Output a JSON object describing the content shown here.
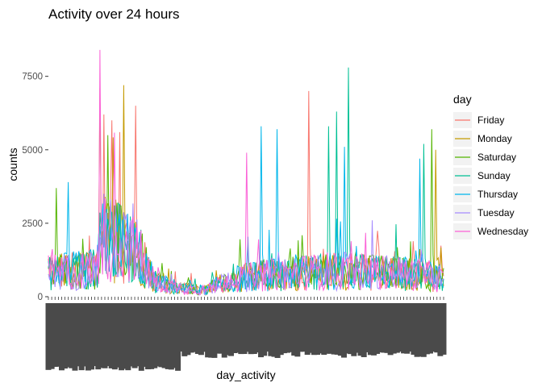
{
  "chart_data": {
    "type": "line",
    "title": "Activity over 24 hours",
    "xlabel": "day_activity",
    "ylabel": "counts",
    "ylim": [
      0,
      9000
    ],
    "yticks": [
      {
        "value": 0,
        "label": "0"
      },
      {
        "value": 2500,
        "label": "2500"
      },
      {
        "value": 5000,
        "label": "5000"
      },
      {
        "value": 7500,
        "label": "7500"
      }
    ],
    "x_tick_labels_overplotted": true,
    "grid": false,
    "legend": {
      "title": "day",
      "position": "right"
    },
    "series": [
      {
        "name": "Friday",
        "color": "#F8766D",
        "peaks": [
          [
            0.14,
            6200
          ],
          [
            0.16,
            6000
          ],
          [
            0.18,
            5600
          ],
          [
            0.22,
            6500
          ],
          [
            0.66,
            7000
          ]
        ]
      },
      {
        "name": "Monday",
        "color": "#C49A00",
        "peaks": [
          [
            0.13,
            7100
          ],
          [
            0.19,
            7200
          ],
          [
            0.98,
            5000
          ]
        ]
      },
      {
        "name": "Saturday",
        "color": "#53B400",
        "peaks": [
          [
            0.02,
            3700
          ],
          [
            0.15,
            5500
          ],
          [
            0.97,
            5700
          ]
        ]
      },
      {
        "name": "Sunday",
        "color": "#00C094",
        "peaks": [
          [
            0.71,
            5800
          ],
          [
            0.73,
            6300
          ],
          [
            0.76,
            7800
          ],
          [
            0.95,
            5200
          ]
        ]
      },
      {
        "name": "Thursday",
        "color": "#00B6EB",
        "peaks": [
          [
            0.05,
            3900
          ],
          [
            0.54,
            5800
          ],
          [
            0.58,
            5700
          ],
          [
            0.75,
            5100
          ],
          [
            0.94,
            4700
          ]
        ]
      },
      {
        "name": "Tuesday",
        "color": "#A58AFF",
        "peaks": [
          [
            0.14,
            3500
          ],
          [
            0.82,
            2600
          ]
        ]
      },
      {
        "name": "Wednesday",
        "color": "#FB61D7",
        "peaks": [
          [
            0.13,
            8950
          ],
          [
            0.13,
            8400
          ],
          [
            0.5,
            4900
          ]
        ]
      }
    ]
  }
}
